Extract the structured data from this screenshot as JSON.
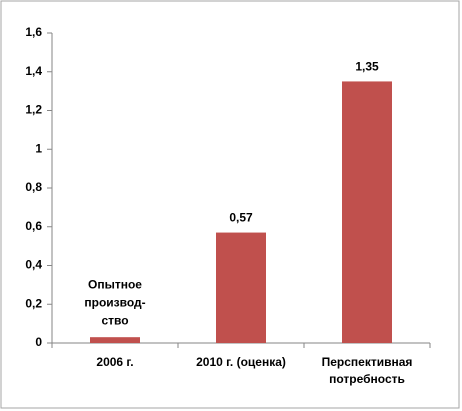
{
  "chart_data": {
    "type": "bar",
    "categories": [
      "2006 г.",
      "2010 г. (оценка)",
      "Перспективная потребность"
    ],
    "values": [
      0.03,
      0.57,
      1.35
    ],
    "value_labels": [
      null,
      "0,57",
      "1,35"
    ],
    "annotation": [
      "Опытное",
      "производ-",
      "ство"
    ],
    "color": "#c0504d",
    "ylim": [
      0,
      1.6
    ],
    "yticks": [
      0,
      {
        "value": 0.2,
        "label": "0,2"
      },
      {
        "value": 0.4,
        "label": "0,4"
      },
      {
        "value": 0.6,
        "label": "0,6"
      },
      {
        "value": 0.8,
        "label": "0,8"
      },
      1,
      {
        "value": 1.2,
        "label": "1,2"
      },
      {
        "value": 1.4,
        "label": "1,4"
      },
      {
        "value": 1.6,
        "label": "1,6"
      }
    ],
    "grid": false
  }
}
